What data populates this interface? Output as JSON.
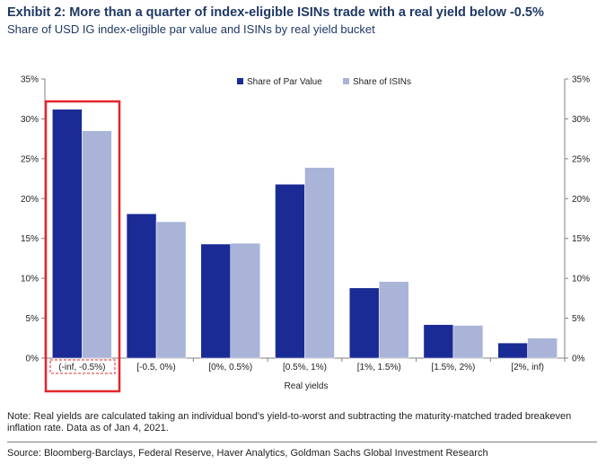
{
  "header": {
    "title": "Exhibit 2: More than a quarter of index-eligible ISINs trade with a real yield below -0.5%",
    "subtitle": "Share of USD IG index-eligible par value and ISINs by real yield bucket"
  },
  "chart_data": {
    "type": "bar",
    "categories": [
      "(-inf, -0.5%)",
      "[-0.5, 0%)",
      "[0%, 0.5%)",
      "[0.5%, 1%)",
      "[1%, 1.5%)",
      "[1.5%, 2%)",
      "[2%, inf)"
    ],
    "series": [
      {
        "name": "Share of Par Value",
        "values": [
          31.2,
          18.1,
          14.3,
          21.8,
          8.8,
          4.2,
          1.9
        ]
      },
      {
        "name": "Share of ISINs",
        "values": [
          28.5,
          17.1,
          14.4,
          23.9,
          9.6,
          4.1,
          2.5
        ]
      }
    ],
    "xlabel": "Real yields",
    "ylabel": "",
    "ylim": [
      0,
      35
    ],
    "yticks": [
      "0%",
      "5%",
      "10%",
      "15%",
      "20%",
      "25%",
      "30%",
      "35%"
    ],
    "legend": "top-center",
    "highlighted_category": "(-inf, -0.5%)"
  },
  "colors": {
    "series1": "#1a2b95",
    "series2": "#aab4d8",
    "highlight": "#e8232a"
  },
  "footer": {
    "note": "Note: Real yields are calculated taking an individual bond's yield-to-worst and subtracting the maturity-matched traded breakeven inflation rate. Data as of Jan 4, 2021.",
    "source": "Source: Bloomberg-Barclays, Federal Reserve, Haver Analytics, Goldman Sachs Global Investment Research"
  }
}
